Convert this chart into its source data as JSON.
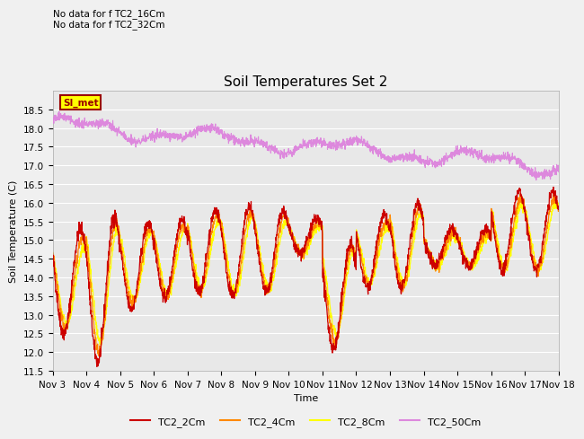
{
  "title": "Soil Temperatures Set 2",
  "xlabel": "Time",
  "ylabel": "Soil Temperature (C)",
  "ylim": [
    11.5,
    19.0
  ],
  "yticks": [
    11.5,
    12.0,
    12.5,
    13.0,
    13.5,
    14.0,
    14.5,
    15.0,
    15.5,
    16.0,
    16.5,
    17.0,
    17.5,
    18.0,
    18.5
  ],
  "xtick_labels": [
    "Nov 3",
    "Nov 4",
    "Nov 5",
    "Nov 6",
    "Nov 7",
    "Nov 8",
    "Nov 9",
    "Nov 10",
    "Nov 11",
    "Nov 12",
    "Nov 13",
    "Nov 14",
    "Nov 15",
    "Nov 16",
    "Nov 17",
    "Nov 18"
  ],
  "series_colors": {
    "TC2_2Cm": "#cc0000",
    "TC2_4Cm": "#ff8800",
    "TC2_8Cm": "#ffff00",
    "TC2_50Cm": "#dd88dd"
  },
  "legend_labels": [
    "TC2_2Cm",
    "TC2_4Cm",
    "TC2_8Cm",
    "TC2_50Cm"
  ],
  "annotation_text": "No data for f TC2_16Cm\nNo data for f TC2_32Cm",
  "si_met_label": "SI_met",
  "background_color": "#e8e8e8",
  "grid_color": "#ffffff",
  "title_fontsize": 11,
  "axis_fontsize": 8,
  "tick_fontsize": 7.5
}
